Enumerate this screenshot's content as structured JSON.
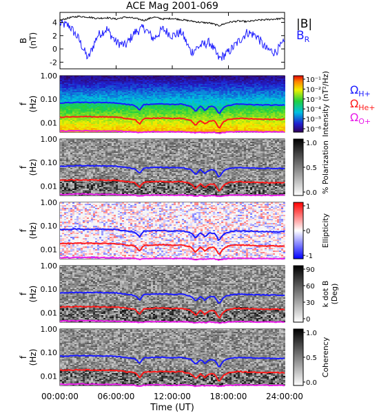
{
  "chart_data": {
    "type": "multi-panel spectrogram",
    "title": "ACE Mag 2001-069",
    "xlabel": "Time (UT)",
    "x_ticks": [
      "00:00:00",
      "06:00:00",
      "12:00:00",
      "18:00:00",
      "24:00:00"
    ],
    "x_range_hours": [
      0,
      24
    ],
    "panels": [
      {
        "type": "line",
        "ylabel": "B",
        "yunit": "(nT)",
        "ylim": [
          -3,
          5.5
        ],
        "y_ticks": [
          "4",
          "2",
          "0",
          "-2"
        ],
        "y_tick_values": [
          4,
          2,
          0,
          -2
        ],
        "series": [
          {
            "name": "|B|",
            "color": "#000000",
            "x": [
              0,
              1,
              2,
              3,
              4,
              5,
              6,
              7,
              8,
              9,
              10,
              11,
              12,
              13,
              14,
              15,
              16,
              17,
              18,
              19,
              20,
              21,
              22,
              23,
              24
            ],
            "values": [
              4.3,
              4.7,
              4.9,
              4.8,
              4.6,
              4.7,
              4.5,
              4.8,
              4.6,
              4.3,
              4.8,
              4.5,
              4.6,
              4.4,
              4.2,
              4.0,
              3.9,
              3.5,
              4.0,
              4.2,
              4.1,
              4.3,
              4.4,
              4.5,
              4.6
            ]
          },
          {
            "name": "B",
            "subscript": "R",
            "color": "#1a1aff",
            "x": [
              0,
              1,
              2,
              3,
              4,
              5,
              6,
              7,
              8,
              9,
              10,
              11,
              12,
              13,
              14,
              15,
              16,
              17,
              18,
              19,
              20,
              21,
              22,
              23,
              24
            ],
            "values": [
              3.8,
              3.5,
              1.5,
              -1.5,
              2.0,
              3.0,
              1.0,
              0.5,
              2.5,
              3.2,
              1.5,
              3.0,
              2.0,
              2.5,
              -0.5,
              0.5,
              1.0,
              -1.5,
              -0.5,
              1.0,
              2.5,
              2.0,
              0.0,
              -0.5,
              1.0
            ]
          }
        ]
      },
      {
        "type": "heatmap",
        "ylabel": "f",
        "yunit": "(Hz)",
        "colorbar_label": "Intensity (nT²/Hz)",
        "colorbar_ticks": [
          "10⁻¹",
          "10⁻²",
          "10⁻³",
          "10⁻⁴",
          "10⁻⁵",
          "10⁻⁶"
        ],
        "colormap": "rainbow"
      },
      {
        "type": "heatmap",
        "ylabel": "f",
        "yunit": "(Hz)",
        "colorbar_label": "% Polarization",
        "colorbar_ticks": [
          "1.0",
          "0.5",
          "0.0"
        ],
        "colormap": "gray"
      },
      {
        "type": "heatmap",
        "ylabel": "f",
        "yunit": "(Hz)",
        "colorbar_label": "Ellipticity",
        "colorbar_ticks": [
          "1",
          "0",
          "-1"
        ],
        "colormap": "blue-white-red"
      },
      {
        "type": "heatmap",
        "ylabel": "f",
        "yunit": "(Hz)",
        "colorbar_label": "k dot B",
        "colorbar_label_unit": "(Deg)",
        "colorbar_ticks": [
          "90",
          "60",
          "30",
          "0"
        ],
        "colormap": "gray"
      },
      {
        "type": "heatmap",
        "ylabel": "f",
        "yunit": "(Hz)",
        "colorbar_label": "Coherency",
        "colorbar_ticks": [
          "1.0",
          "0.5",
          "0.0"
        ],
        "colormap": "gray"
      }
    ],
    "freq_ticks": [
      "1.00",
      "0.10",
      "0.01"
    ],
    "freq_tick_values": [
      1.0,
      0.1,
      0.01
    ],
    "freq_scale": "log",
    "freq_range_hz": [
      0.004,
      1.0
    ],
    "gyrofrequency_lines": [
      {
        "name": "Ω",
        "subscript": "H+",
        "color": "#1a1aff",
        "x": [
          0,
          2,
          4,
          6,
          7,
          8,
          8.5,
          9,
          10,
          11,
          12,
          13,
          14,
          14.5,
          15,
          15.5,
          16,
          16.5,
          17,
          17.5,
          18,
          19,
          20,
          21,
          22,
          23,
          24
        ],
        "values": [
          0.07,
          0.074,
          0.072,
          0.07,
          0.062,
          0.055,
          0.034,
          0.06,
          0.062,
          0.063,
          0.06,
          0.062,
          0.05,
          0.03,
          0.05,
          0.034,
          0.05,
          0.048,
          0.022,
          0.045,
          0.055,
          0.062,
          0.06,
          0.058,
          0.057,
          0.056,
          0.057
        ]
      },
      {
        "name": "Ω",
        "subscript": "He+",
        "color": "#ff1a1a",
        "x": [
          0,
          2,
          4,
          6,
          7,
          8,
          8.5,
          9,
          10,
          11,
          12,
          13,
          14,
          14.5,
          15,
          15.5,
          16,
          16.5,
          17,
          17.5,
          18,
          19,
          20,
          21,
          22,
          23,
          24
        ],
        "values": [
          0.0175,
          0.0185,
          0.018,
          0.0175,
          0.0155,
          0.014,
          0.0085,
          0.015,
          0.0155,
          0.016,
          0.015,
          0.0155,
          0.0125,
          0.0075,
          0.0125,
          0.0085,
          0.0125,
          0.012,
          0.0055,
          0.011,
          0.014,
          0.0155,
          0.015,
          0.0145,
          0.014,
          0.014,
          0.014
        ]
      },
      {
        "name": "Ω",
        "subscript": "O+",
        "color": "#e81ae8",
        "x": [
          0,
          2,
          4,
          6,
          7,
          8,
          8.5,
          9,
          10,
          11,
          12,
          13,
          14,
          14.5,
          15,
          15.5,
          16,
          16.5,
          17,
          17.5,
          18,
          19,
          20,
          21,
          22,
          23,
          24
        ],
        "values": [
          0.0044,
          0.0046,
          0.0045,
          0.0044,
          0.0042,
          0.0041,
          0.0038,
          0.0041,
          0.0042,
          0.0042,
          0.0041,
          0.0042,
          0.004,
          0.0037,
          0.004,
          0.0038,
          0.004,
          0.004,
          0.0036,
          0.0039,
          0.0041,
          0.0042,
          0.0042,
          0.0041,
          0.0041,
          0.0041,
          0.0041
        ]
      }
    ]
  }
}
